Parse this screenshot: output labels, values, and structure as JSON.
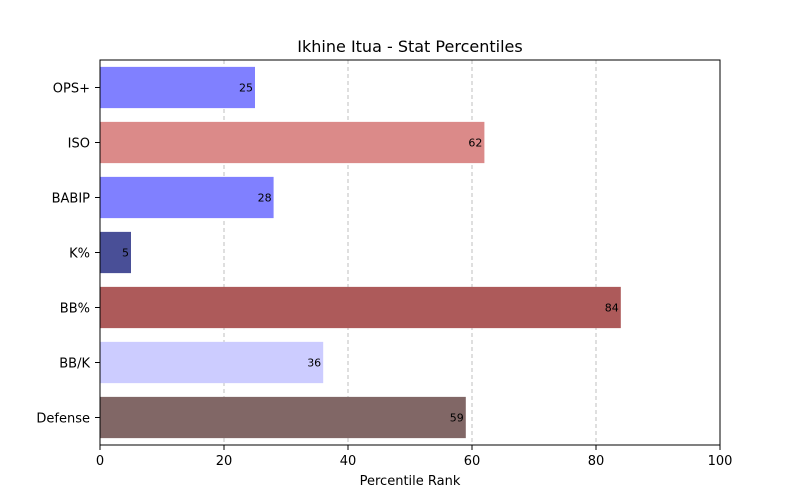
{
  "chart_data": {
    "type": "bar",
    "orientation": "horizontal",
    "title": "Ikhine Itua - Stat Percentiles",
    "xlabel": "Percentile Rank",
    "ylabel": "",
    "xlim": [
      0,
      100
    ],
    "xticks": [
      "0",
      "20",
      "40",
      "60",
      "80",
      "100"
    ],
    "grid": "x-dashed",
    "categories": [
      "OPS+",
      "ISO",
      "BABIP",
      "K%",
      "BB%",
      "BB/K",
      "Defense"
    ],
    "values": [
      25,
      62,
      28,
      5,
      84,
      36,
      59
    ],
    "colors": [
      "#8080ff",
      "#db8a89",
      "#8080ff",
      "#494f97",
      "#ad5a5a",
      "#ccccff",
      "#816766"
    ]
  }
}
